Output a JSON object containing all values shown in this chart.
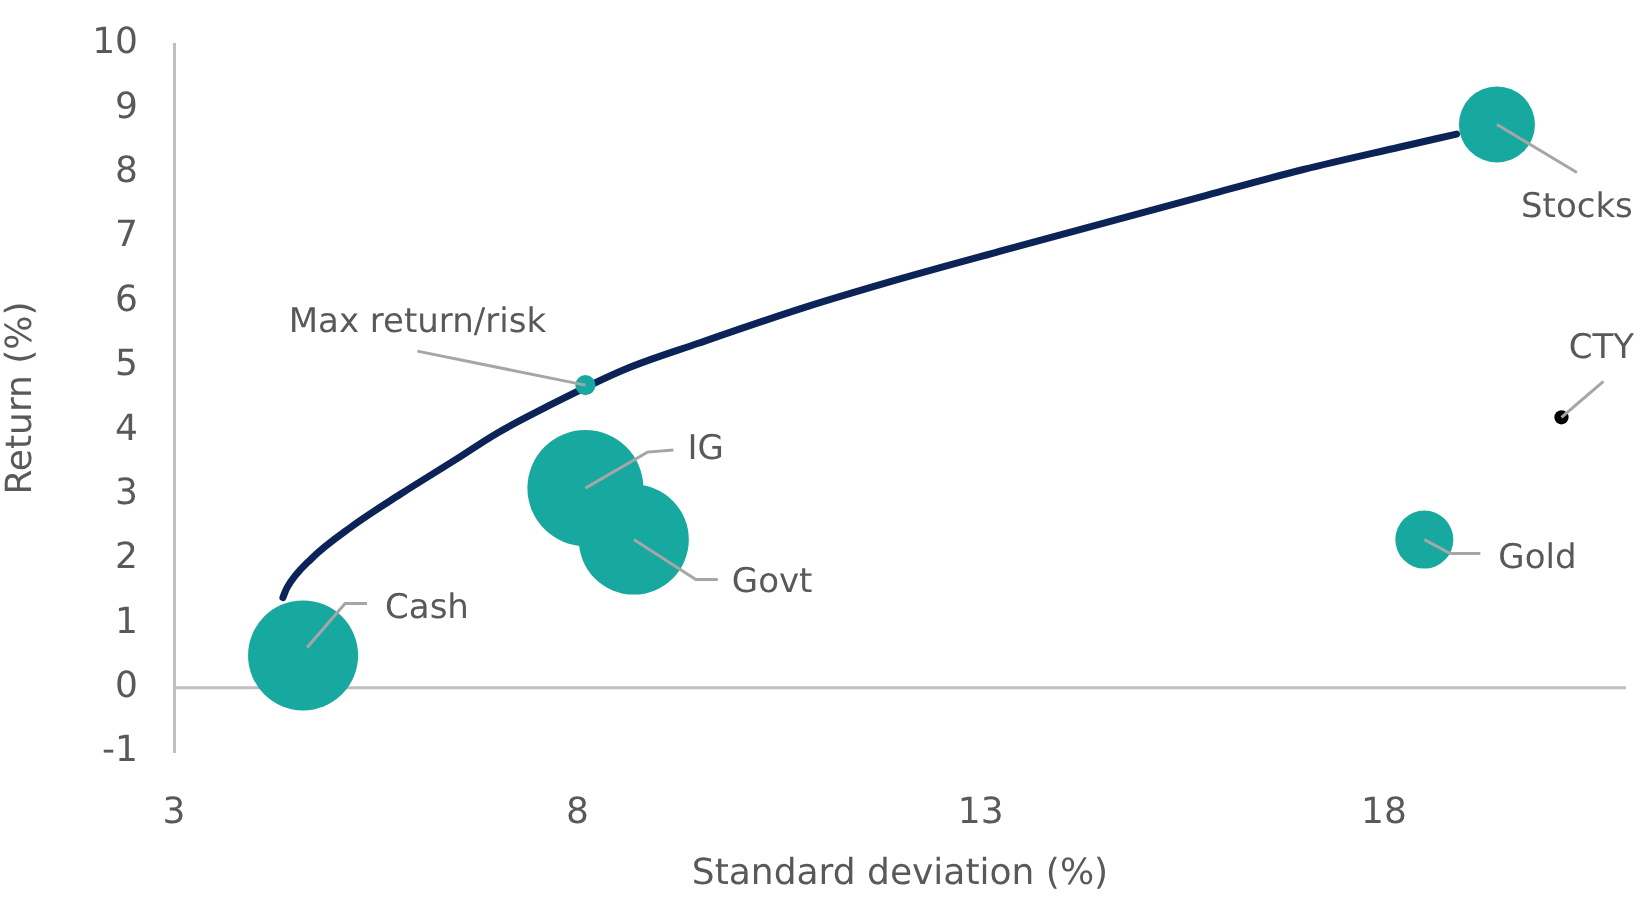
{
  "chart_data": {
    "type": "bubble",
    "xlabel": "Standard deviation (%)",
    "ylabel": "Return (%)",
    "xlim": [
      3,
      21
    ],
    "xticks": [
      3,
      8,
      13,
      18
    ],
    "ylim": [
      -1,
      10
    ],
    "yticks": [
      -1,
      0,
      1,
      2,
      3,
      4,
      5,
      6,
      7,
      8,
      9,
      10
    ],
    "series": [
      {
        "type": "line",
        "color": "#0b2356",
        "x": [
          4.35,
          4.4,
          4.7,
          5.2,
          5.8,
          6.5,
          7.0,
          7.6,
          8.6,
          9.5,
          10.8,
          12.0,
          13.3,
          15.8,
          17.0,
          18.2,
          18.9
        ],
        "values": [
          1.4,
          1.55,
          2.0,
          2.5,
          3.0,
          3.55,
          3.95,
          4.35,
          4.95,
          5.35,
          5.9,
          6.35,
          6.8,
          7.65,
          8.05,
          8.4,
          8.6
        ]
      },
      {
        "type": "bubble",
        "x": [
          4.6,
          8.7,
          8.1,
          8.1,
          18.5,
          19.4,
          20.2
        ],
        "values": [
          0.5,
          2.3,
          3.1,
          4.7,
          2.3,
          8.75,
          4.2
        ],
        "sizes": [
          0.9,
          0.9,
          1,
          0.03,
          0.25,
          0.43,
          0.015
        ],
        "colors": [
          "#17a8a0",
          "#17a8a0",
          "#17a8a0",
          "#17a8a0",
          "#17a8a0",
          "#17a8a0",
          "#000000"
        ]
      }
    ],
    "annotations": [
      {
        "text": "Cash",
        "x": 4.6,
        "y": 0.5
      },
      {
        "text": "Govt",
        "x": 8.7,
        "y": 2.3
      },
      {
        "text": "IG",
        "x": 8.1,
        "y": 3.1
      },
      {
        "text": "Max return/risk",
        "x": 8.1,
        "y": 4.7
      },
      {
        "text": "Gold",
        "x": 18.5,
        "y": 2.3
      },
      {
        "text": "Stocks",
        "x": 19.4,
        "y": 8.75
      },
      {
        "text": "CTY",
        "x": 20.2,
        "y": 4.2
      }
    ]
  }
}
